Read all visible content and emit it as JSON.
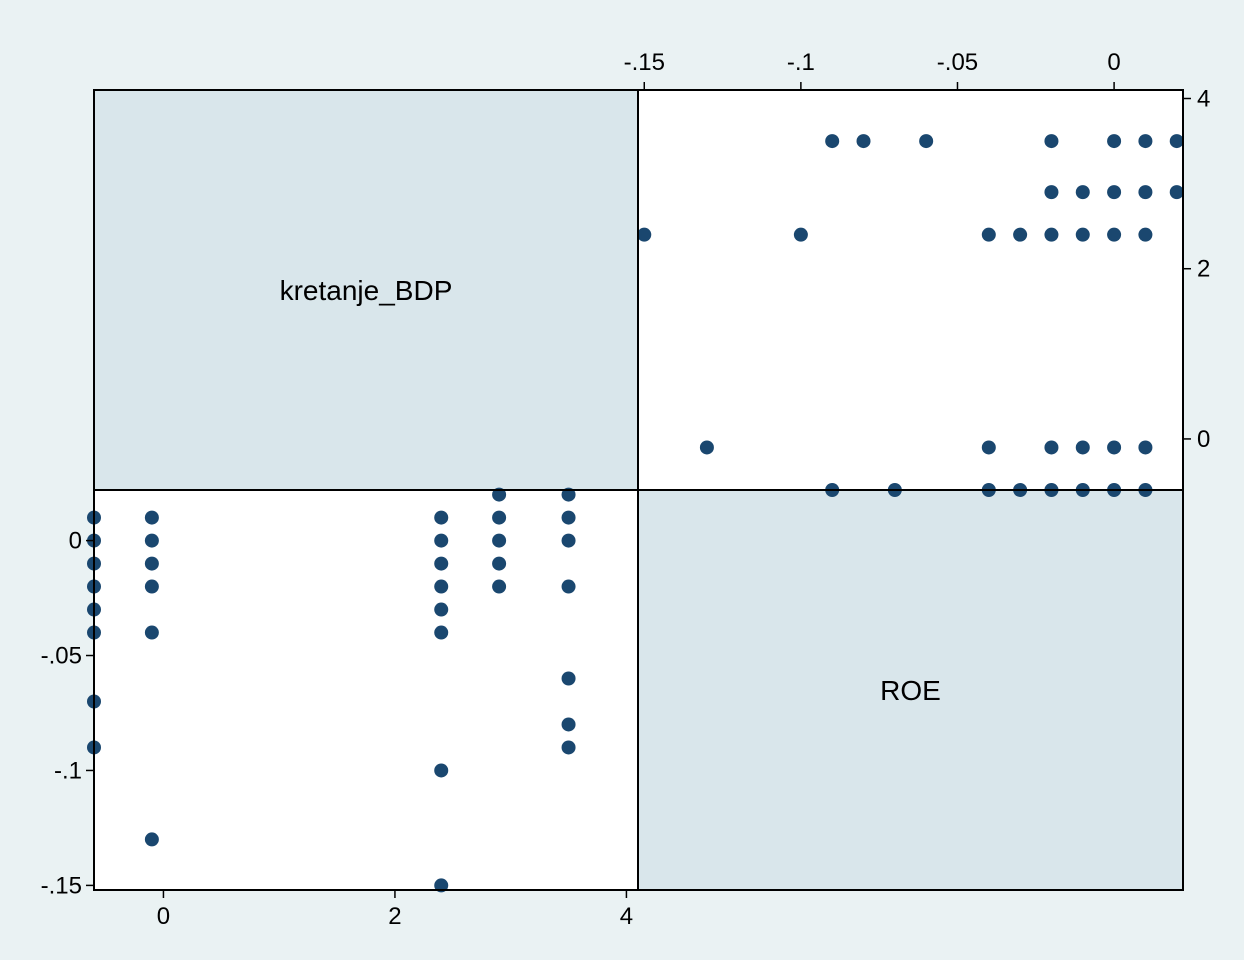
{
  "chart_data": {
    "type": "scatter",
    "variables": [
      "kretanje_BDP",
      "ROE"
    ],
    "colors": {
      "background": "#eaf2f3",
      "diagonal_fill": "#d9e6eb",
      "plot_fill": "#ffffff",
      "marker": "#1a476f",
      "frame": "#000000"
    },
    "grid": false,
    "ticks": {
      "kretanje_BDP": {
        "values": [
          0,
          2,
          4
        ],
        "labels": [
          "0",
          "2",
          "4"
        ]
      },
      "ROE": {
        "values": [
          -0.15,
          -0.1,
          -0.05,
          0
        ],
        "labels": [
          "-.15",
          "-.1",
          "-.05",
          "0"
        ]
      }
    },
    "axis_ranges": {
      "kretanje_BDP": [
        -0.6,
        4.1
      ],
      "ROE": [
        -0.152,
        0.022
      ]
    },
    "series": [
      {
        "points": [
          [
            -0.6,
            0.01
          ],
          [
            -0.6,
            0
          ],
          [
            -0.6,
            -0.01
          ],
          [
            -0.6,
            -0.02
          ],
          [
            -0.6,
            -0.03
          ],
          [
            -0.6,
            -0.04
          ],
          [
            -0.6,
            -0.07
          ],
          [
            -0.6,
            -0.09
          ],
          [
            -0.1,
            0.01
          ],
          [
            -0.1,
            0
          ],
          [
            -0.1,
            -0.01
          ],
          [
            -0.1,
            -0.02
          ],
          [
            -0.1,
            -0.04
          ],
          [
            -0.1,
            -0.13
          ],
          [
            2.4,
            0.01
          ],
          [
            2.4,
            0
          ],
          [
            2.4,
            -0.01
          ],
          [
            2.4,
            -0.02
          ],
          [
            2.4,
            -0.03
          ],
          [
            2.4,
            -0.04
          ],
          [
            2.4,
            -0.1
          ],
          [
            2.4,
            -0.15
          ],
          [
            2.9,
            0.02
          ],
          [
            2.9,
            0.01
          ],
          [
            2.9,
            0
          ],
          [
            2.9,
            -0.01
          ],
          [
            2.9,
            -0.02
          ],
          [
            3.5,
            0.02
          ],
          [
            3.5,
            0.01
          ],
          [
            3.5,
            0
          ],
          [
            3.5,
            -0.02
          ],
          [
            3.5,
            -0.06
          ],
          [
            3.5,
            -0.08
          ],
          [
            3.5,
            -0.09
          ]
        ]
      }
    ]
  }
}
